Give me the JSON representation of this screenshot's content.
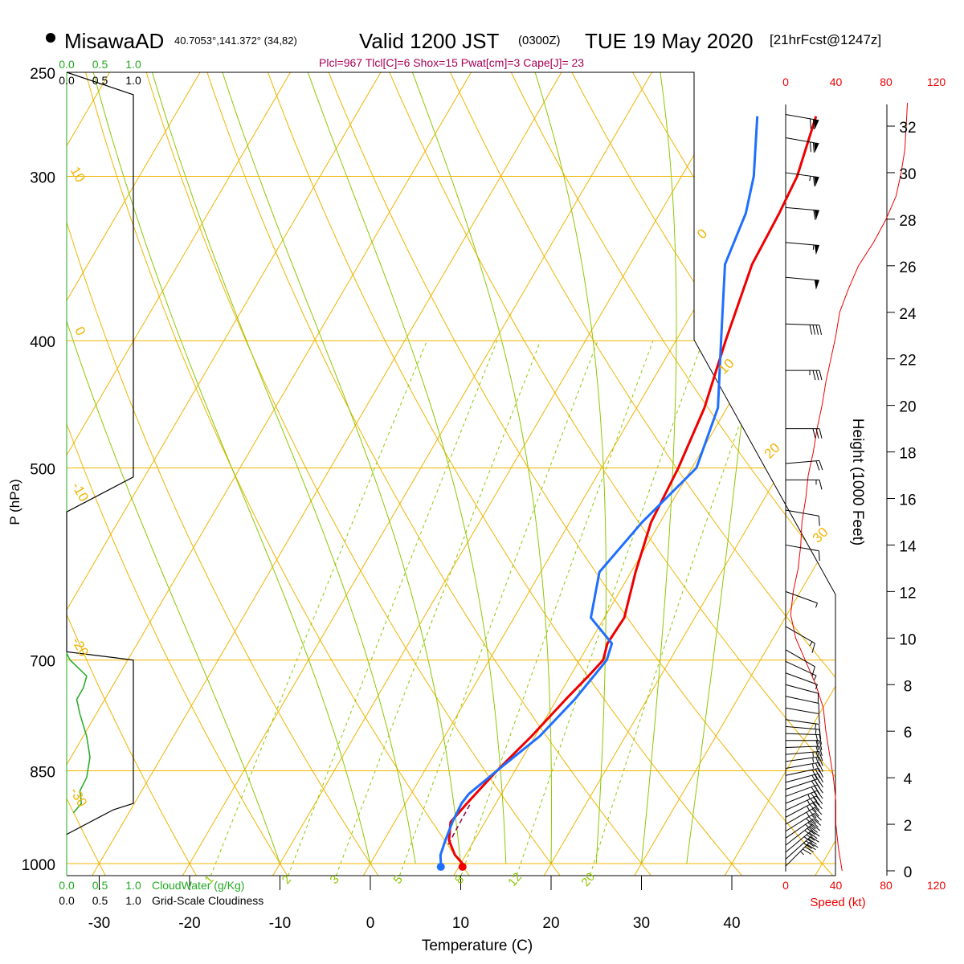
{
  "header": {
    "station": "MisawaAD",
    "coords": "40.7053°,141.372° (34,82)",
    "valid_prefix": "Valid 1200 JST",
    "valid_utc": "(0300Z)",
    "valid_date": "TUE 19 May 2020",
    "forecast": "[21hrFcst@1247z]",
    "indices": "Plcl=967 Tlcl[C]=6 Shox=15 Pwat[cm]=3 Cape[J]= 23"
  },
  "colors": {
    "temperature": "#ee0000",
    "dewpoint": "#1f6fff",
    "isotherm": "#f0b400",
    "adiabat": "#8cc800",
    "mixing_ratio": "#8cc800",
    "cloud_water": "#22aa22",
    "speed_axis": "#ee0000",
    "index_text": "#aa0055"
  },
  "chart_data": {
    "type": "line",
    "title": "Skew-T log-P sounding",
    "xlabel": "Temperature (C)",
    "ylabel": "P (hPa)",
    "right_label": "Height (1000 Feet)",
    "x_ticks": [
      "-30",
      "-20",
      "-10",
      "0",
      "10",
      "20",
      "30",
      "40"
    ],
    "x_tick_values": [
      -30,
      -20,
      -10,
      0,
      10,
      20,
      30,
      40
    ],
    "p_ticks": [
      "250",
      "300",
      "400",
      "500",
      "700",
      "850",
      "1000"
    ],
    "p_tick_values": [
      250,
      300,
      400,
      500,
      700,
      850,
      1000
    ],
    "height_ticks": [
      "0",
      "2",
      "4",
      "6",
      "8",
      "10",
      "12",
      "14",
      "16",
      "18",
      "20",
      "22",
      "24",
      "26",
      "28",
      "30",
      "32"
    ],
    "height_tick_values": [
      0,
      2,
      4,
      6,
      8,
      10,
      12,
      14,
      16,
      18,
      20,
      22,
      24,
      26,
      28,
      30,
      32
    ],
    "speed_ticks": [
      "0",
      "40",
      "80",
      "120"
    ],
    "speed_tick_values": [
      0,
      40,
      80,
      120
    ],
    "speed_axis_label": "Speed (kt)",
    "cloud_scale_ticks": [
      "0.0",
      "0.5",
      "1.0"
    ],
    "cloud_scale_values": [
      0.0,
      0.5,
      1.0
    ],
    "cloud_water_label": "CloudWater (g/Kg)",
    "cloudiness_label": "Grid-Scale Cloudiness",
    "series": [
      {
        "name": "Temperature",
        "p": [
          1000,
          985,
          960,
          930,
          900,
          850,
          800,
          750,
          720,
          700,
          680,
          650,
          600,
          550,
          500,
          450,
          400,
          350,
          320,
          300,
          270
        ],
        "t": [
          10.2,
          8.8,
          7.2,
          6.2,
          6.8,
          8.0,
          9.6,
          11.0,
          12.0,
          12.6,
          12.0,
          12.2,
          10.5,
          9.0,
          8.5,
          7.5,
          5.5,
          3.5,
          3.2,
          2.8,
          1.0
        ]
      },
      {
        "name": "Dewpoint",
        "p": [
          1000,
          985,
          960,
          930,
          900,
          885,
          850,
          800,
          750,
          720,
          700,
          680,
          650,
          600,
          550,
          500,
          450,
          400,
          350,
          320,
          300,
          270
        ],
        "td": [
          7.8,
          7.2,
          6.8,
          6.4,
          6.2,
          6.4,
          8.0,
          10.5,
          12.0,
          12.6,
          13.0,
          12.5,
          8.5,
          6.5,
          8.0,
          10.5,
          9.0,
          5.0,
          0.5,
          -0.5,
          -2.0,
          -5.5
        ]
      },
      {
        "name": "Parcel",
        "p": [
          967,
          940,
          900
        ],
        "t": [
          7.4,
          7.3,
          7.2
        ]
      },
      {
        "name": "Height",
        "z": [
          0,
          1,
          2,
          3,
          4,
          5,
          6,
          7,
          8,
          9,
          10,
          11,
          12,
          13,
          14,
          15,
          16,
          17,
          18,
          19,
          20,
          21,
          22,
          23,
          24,
          25,
          26,
          27,
          28,
          29,
          30,
          31,
          32,
          33
        ],
        "speed": [
          45,
          42,
          40,
          40,
          38,
          35,
          32,
          30,
          24,
          16,
          8,
          4,
          6,
          10,
          12,
          13,
          16,
          18,
          22,
          25,
          29,
          32,
          36,
          40,
          43,
          50,
          58,
          70,
          80,
          88,
          92,
          95,
          96,
          97
        ]
      }
    ],
    "cloud_water": {
      "p": [
        692,
        700,
        720,
        735,
        750,
        770,
        800,
        830,
        860,
        880,
        900,
        915
      ],
      "value": [
        0.0,
        0.05,
        0.3,
        0.25,
        0.15,
        0.2,
        0.3,
        0.35,
        0.3,
        0.2,
        0.22,
        0.1
      ]
    },
    "cloudiness": {
      "p": [
        250,
        260,
        508,
        540,
        690,
        700,
        900,
        910,
        950
      ],
      "value": [
        0.0,
        1.0,
        1.0,
        0.0,
        0.0,
        1.0,
        1.0,
        0.7,
        0.0
      ]
    },
    "dry_adiabat_labels": [
      "10",
      "0",
      "-10",
      "-20",
      "-30",
      "0",
      "10",
      "20",
      "30"
    ],
    "mixing_ratio_labels": [
      "1",
      "2",
      "3",
      "5",
      "8",
      "12",
      "20"
    ],
    "mixing_ratio_values": [
      1,
      2,
      3,
      5,
      8,
      12,
      20
    ],
    "wind_barbs": {
      "z": [
        0.2,
        0.5,
        0.8,
        1.1,
        1.4,
        1.7,
        2.0,
        2.3,
        2.6,
        2.9,
        3.2,
        3.5,
        3.8,
        4.1,
        4.4,
        4.7,
        5.0,
        5.3,
        5.6,
        5.9,
        6.2,
        6.5,
        7.0,
        7.5,
        8.0,
        8.5,
        9.0,
        9.5,
        10.5,
        12.0,
        14.0,
        15.5,
        16.8,
        17.5,
        19.0,
        21.5,
        23.5,
        25.5,
        27.0,
        28.5,
        30.0,
        31.5,
        32.5
      ],
      "speed": [
        45,
        44,
        42,
        40,
        40,
        40,
        38,
        38,
        36,
        35,
        34,
        32,
        30,
        30,
        28,
        26,
        25,
        24,
        22,
        20,
        18,
        16,
        14,
        12,
        10,
        8,
        8,
        10,
        15,
        5,
        10,
        12,
        15,
        20,
        30,
        35,
        40,
        50,
        55,
        60,
        65,
        70,
        70
      ],
      "direction": [
        225,
        228,
        230,
        232,
        235,
        238,
        240,
        242,
        245,
        248,
        250,
        252,
        255,
        258,
        260,
        262,
        265,
        268,
        270,
        272,
        275,
        278,
        280,
        282,
        285,
        290,
        295,
        300,
        300,
        290,
        280,
        280,
        270,
        265,
        270,
        270,
        272,
        275,
        275,
        275,
        278,
        280,
        280
      ]
    }
  }
}
